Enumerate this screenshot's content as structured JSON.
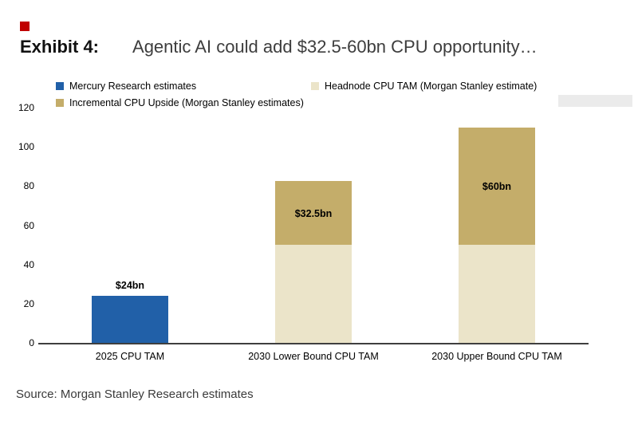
{
  "exhibit": {
    "label": "Exhibit 4:",
    "title": "Agentic AI could add $32.5-60bn CPU opportunity…",
    "accent_color": "#c00000"
  },
  "legend": [
    {
      "label": "Mercury Research estimates",
      "color": "#2160a8"
    },
    {
      "label": "Headnode CPU TAM (Morgan Stanley estimate)",
      "color": "#ebe4c9"
    },
    {
      "label": "Incremental CPU Upside (Morgan Stanley estimates)",
      "color": "#c4ad6a"
    }
  ],
  "chart_data": {
    "type": "bar",
    "stacked": true,
    "title": "Agentic AI could add $32.5-60bn CPU opportunity…",
    "categories": [
      "2025 CPU TAM",
      "2030 Lower Bound CPU TAM",
      "2030 Upper Bound CPU TAM"
    ],
    "series": [
      {
        "name": "Mercury Research estimates",
        "color": "#2160a8",
        "values": [
          24,
          0,
          0
        ]
      },
      {
        "name": "Headnode CPU TAM (Morgan Stanley estimate)",
        "color": "#ebe4c9",
        "values": [
          0,
          50,
          50
        ]
      },
      {
        "name": "Incremental CPU Upside (Morgan Stanley estimates)",
        "color": "#c4ad6a",
        "values": [
          0,
          32.5,
          60
        ]
      }
    ],
    "bar_labels": [
      {
        "category_index": 0,
        "text": "$24bn",
        "position": "above"
      },
      {
        "category_index": 1,
        "text": "$32.5bn",
        "position": "inside-top"
      },
      {
        "category_index": 2,
        "text": "$60bn",
        "position": "inside-top"
      }
    ],
    "xlabel": "",
    "ylabel": "",
    "ylim": [
      0,
      120
    ],
    "yticks": [
      0,
      20,
      40,
      60,
      80,
      100,
      120
    ],
    "grid": false,
    "legend_position": "top"
  },
  "source": "Source: Morgan Stanley Research estimates"
}
